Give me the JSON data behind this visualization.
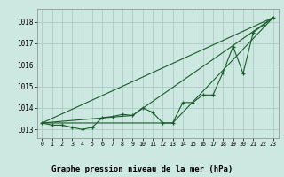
{
  "background_color": "#cce8e0",
  "plot_bg_color": "#cce8e0",
  "grid_color": "#aaccC4",
  "line_color": "#1a5c2a",
  "title": "Graphe pression niveau de la mer (hPa)",
  "xlim": [
    -0.5,
    23.5
  ],
  "ylim": [
    1012.6,
    1018.6
  ],
  "yticks": [
    1013,
    1014,
    1015,
    1016,
    1017,
    1018
  ],
  "xticks": [
    0,
    1,
    2,
    3,
    4,
    5,
    6,
    7,
    8,
    9,
    10,
    11,
    12,
    13,
    14,
    15,
    16,
    17,
    18,
    19,
    20,
    21,
    22,
    23
  ],
  "line_main": {
    "x": [
      0,
      1,
      2,
      3,
      4,
      5,
      6,
      7,
      8,
      9,
      10,
      11,
      12,
      13,
      14,
      15,
      16,
      17,
      18,
      19,
      20,
      21,
      22,
      23
    ],
    "y": [
      1013.3,
      1013.2,
      1013.2,
      1013.1,
      1013.0,
      1013.1,
      1013.55,
      1013.6,
      1013.7,
      1013.65,
      1014.0,
      1013.8,
      1013.3,
      1013.3,
      1014.25,
      1014.25,
      1014.6,
      1014.6,
      1015.65,
      1016.85,
      1015.6,
      1017.5,
      1017.85,
      1018.2
    ]
  },
  "line_straight": {
    "x": [
      0,
      23
    ],
    "y": [
      1013.3,
      1018.2
    ]
  },
  "line_bent1": {
    "x": [
      0,
      13,
      23
    ],
    "y": [
      1013.3,
      1013.3,
      1018.2
    ]
  },
  "line_bent2": {
    "x": [
      0,
      9,
      23
    ],
    "y": [
      1013.3,
      1013.65,
      1018.2
    ]
  }
}
